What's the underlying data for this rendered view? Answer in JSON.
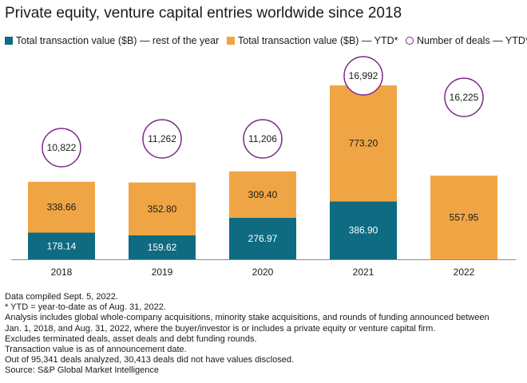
{
  "title": "Private equity, venture capital entries worldwide since 2018",
  "legend": {
    "rest_label": "Total transaction value ($B) — rest of the year",
    "ytd_label": "Total transaction value ($B) — YTD*",
    "deals_label": "Number of deals — YTD*"
  },
  "colors": {
    "rest": "#0e6b82",
    "ytd": "#f0a545",
    "deals_ring": "#7a2a86",
    "baseline": "#8c8c8c"
  },
  "chart_data": {
    "type": "bar",
    "stacked": true,
    "categories": [
      "2018",
      "2019",
      "2020",
      "2021",
      "2022"
    ],
    "series": [
      {
        "name": "Total transaction value ($B) — rest of the year",
        "values": [
          178.14,
          159.62,
          276.97,
          386.9,
          null
        ],
        "labels": [
          "178.14",
          "159.62",
          "276.97",
          "386.90",
          ""
        ]
      },
      {
        "name": "Total transaction value ($B) — YTD*",
        "values": [
          338.66,
          352.8,
          309.4,
          773.2,
          557.95
        ],
        "labels": [
          "338.66",
          "352.80",
          "309.40",
          "773.20",
          "557.95"
        ]
      }
    ],
    "deals": {
      "name": "Number of deals — YTD*",
      "values": [
        10822,
        11262,
        11206,
        16992,
        16225
      ],
      "labels": [
        "10,822",
        "11,262",
        "11,206",
        "16,992",
        "16,225"
      ]
    },
    "ylim": [
      0,
      1160.1
    ],
    "grid": false,
    "legend_position": "top"
  },
  "notes": [
    "Data compiled Sept. 5, 2022.",
    "* YTD = year-to-date as of Aug. 31, 2022.",
    "Analysis includes global whole-company acquisitions, minority stake acquisitions, and rounds of funding announced between",
    "Jan. 1, 2018, and Aug. 31, 2022, where the buyer/investor is or includes a private equity or venture capital firm.",
    "Excludes terminated deals, asset deals and debt funding rounds.",
    "Transaction value is as of announcement date.",
    "Out of 95,341 deals analyzed, 30,413 deals did not have values disclosed.",
    "Source: S&P Global Market Intelligence"
  ]
}
